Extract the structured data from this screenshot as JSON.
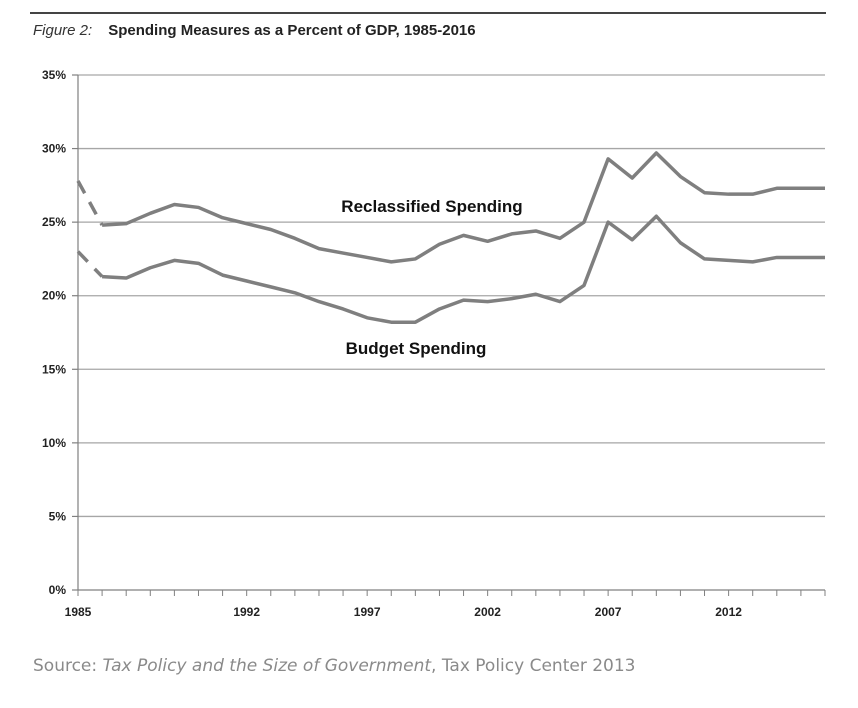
{
  "figure": {
    "label": "Figure 2:",
    "title": "Spending Measures as a Percent of GDP, 1985-2016"
  },
  "source": {
    "prefix": "Source: ",
    "work": "Tax Policy and the Size of Government",
    "suffix": ", Tax Policy Center 2013"
  },
  "colors": {
    "line": "#7f7f7f",
    "grid": "#a6a6a6",
    "axis": "#808080",
    "text": "#222222"
  },
  "chart_data": {
    "type": "line",
    "title": "Spending Measures as a Percent of GDP, 1985-2016",
    "xlabel": "",
    "ylabel": "",
    "xlim": [
      1985,
      2016
    ],
    "ylim": [
      0,
      35
    ],
    "y_ticks": [
      0,
      5,
      10,
      15,
      20,
      25,
      30,
      35
    ],
    "y_tick_labels": [
      "0%",
      "5%",
      "10%",
      "15%",
      "20%",
      "25%",
      "30%",
      "35%"
    ],
    "x_ticks": [
      1985,
      1992,
      1997,
      2002,
      2007,
      2012
    ],
    "x_tick_labels": [
      "1985",
      "1992",
      "1997",
      "2002",
      "2007",
      "2012"
    ],
    "grid": true,
    "legend": "inline labels",
    "series": [
      {
        "name": "Reclassified Spending",
        "dashed_years": [
          1985,
          1986
        ],
        "x": [
          1985,
          1986,
          1987,
          1988,
          1989,
          1990,
          1991,
          1992,
          1993,
          1994,
          1995,
          1996,
          1997,
          1998,
          1999,
          2000,
          2001,
          2002,
          2003,
          2004,
          2005,
          2006,
          2007,
          2008,
          2009,
          2010,
          2011,
          2012,
          2013,
          2014,
          2015,
          2016
        ],
        "values": [
          27.8,
          24.8,
          24.9,
          25.6,
          26.2,
          26.0,
          25.3,
          24.9,
          24.5,
          23.9,
          23.2,
          22.9,
          22.6,
          22.3,
          22.5,
          23.5,
          24.1,
          23.7,
          24.2,
          24.4,
          23.9,
          25.0,
          29.3,
          28.0,
          29.7,
          28.1,
          27.0,
          26.9,
          26.9,
          27.3,
          27.3,
          27.3
        ]
      },
      {
        "name": "Budget Spending",
        "dashed_years": [
          1985,
          1986
        ],
        "x": [
          1985,
          1986,
          1987,
          1988,
          1989,
          1990,
          1991,
          1992,
          1993,
          1994,
          1995,
          1996,
          1997,
          1998,
          1999,
          2000,
          2001,
          2002,
          2003,
          2004,
          2005,
          2006,
          2007,
          2008,
          2009,
          2010,
          2011,
          2012,
          2013,
          2014,
          2015,
          2016
        ],
        "values": [
          23.0,
          21.3,
          21.2,
          21.9,
          22.4,
          22.2,
          21.4,
          21.0,
          20.6,
          20.2,
          19.6,
          19.1,
          18.5,
          18.2,
          18.2,
          19.1,
          19.7,
          19.6,
          19.8,
          20.1,
          19.6,
          20.7,
          25.0,
          23.8,
          25.4,
          23.6,
          22.5,
          22.4,
          22.3,
          22.6,
          22.6,
          22.6
        ]
      }
    ]
  }
}
